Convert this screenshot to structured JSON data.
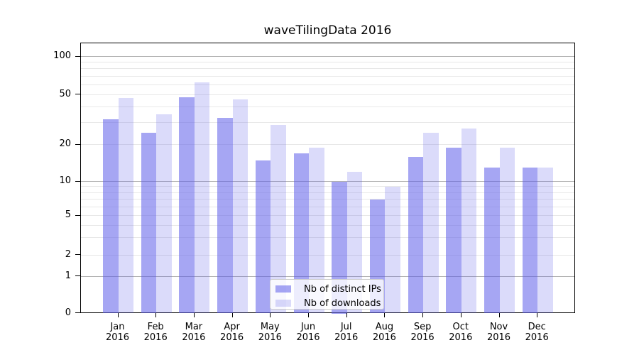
{
  "chart_data": {
    "type": "bar",
    "title": "waveTilingData 2016",
    "categories": [
      "Jan",
      "Feb",
      "Mar",
      "Apr",
      "May",
      "Jun",
      "Jul",
      "Aug",
      "Sep",
      "Oct",
      "Nov",
      "Dec"
    ],
    "year_label": "2016",
    "series": [
      {
        "name": "Nb of distinct IPs",
        "color_hex": "#a6a6f1",
        "color": "rgba(92,92,234,0.55)",
        "values": [
          32,
          25,
          48,
          33,
          15,
          17,
          10,
          7,
          16,
          19,
          13,
          13
        ]
      },
      {
        "name": "Nb of downloads",
        "color_hex": "#dadaf9",
        "color": "rgba(92,92,234,0.22)",
        "values": [
          47,
          35,
          63,
          46,
          29,
          19,
          12,
          9,
          25,
          27,
          19,
          13
        ]
      }
    ],
    "y_ticks": [
      0,
      1,
      2,
      5,
      10,
      20,
      50,
      100
    ],
    "ylim": [
      0,
      120
    ],
    "yscale": "log-like, compressed toward zero",
    "grid": true,
    "legend_position": "lower center",
    "background": "#ffffff",
    "spine_color": "#000000",
    "major_grid_color": "#b0b0b0",
    "minor_grid_color": "#e8e8e8"
  }
}
